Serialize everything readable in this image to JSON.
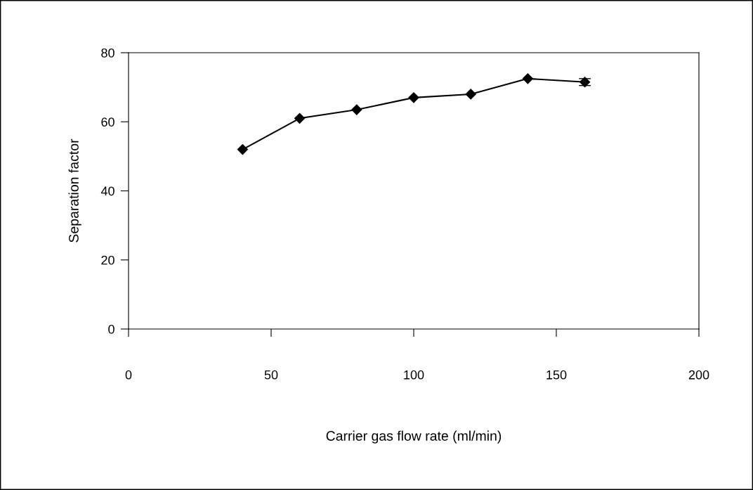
{
  "chart_data": {
    "type": "line",
    "xlabel": "Carrier gas flow rate (ml/min)",
    "ylabel": "Separation factor",
    "x": [
      40,
      60,
      80,
      100,
      120,
      140,
      160
    ],
    "series": [
      {
        "color": "#000000",
        "values": [
          52,
          61,
          63.5,
          67,
          68,
          72.5,
          71.5
        ],
        "errors": [
          null,
          null,
          null,
          null,
          null,
          null,
          1
        ]
      }
    ],
    "xlim": [
      0,
      200
    ],
    "xticks": [
      0,
      50,
      100,
      150,
      200
    ],
    "ylim": [
      0,
      80
    ],
    "yticks": [
      0,
      20,
      40,
      60,
      80
    ],
    "grid": false,
    "legend": false,
    "marker": "diamond",
    "line_style": "solid"
  }
}
